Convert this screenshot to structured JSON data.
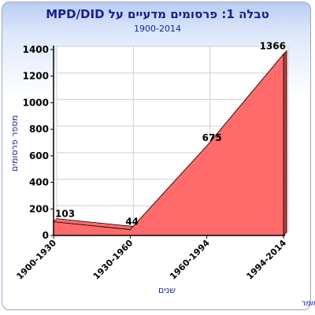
{
  "chart_data": {
    "type": "area",
    "title": "טבלה 1: פרסומים מדעיים על MPD/DID",
    "subtitle": "1900-2014",
    "xlabel": "שנים",
    "ylabel": "מספר פרסומים",
    "categories": [
      "1900-1930",
      "1930-1960",
      "1960-1994",
      "1994-2014"
    ],
    "series": [
      {
        "values": [
          103,
          44,
          675,
          1366
        ]
      }
    ],
    "ylim": [
      0,
      1400
    ],
    "yticks": [
      0,
      200,
      400,
      600,
      800,
      1000,
      1200,
      1400
    ],
    "grid": true,
    "legend": "none"
  },
  "credit": "פרופ' אלי זומר",
  "colors": {
    "fill": "#ff6b6b",
    "side": "#c93a3a",
    "title": "#1a1f8c",
    "frame": "#9aa6c4"
  }
}
